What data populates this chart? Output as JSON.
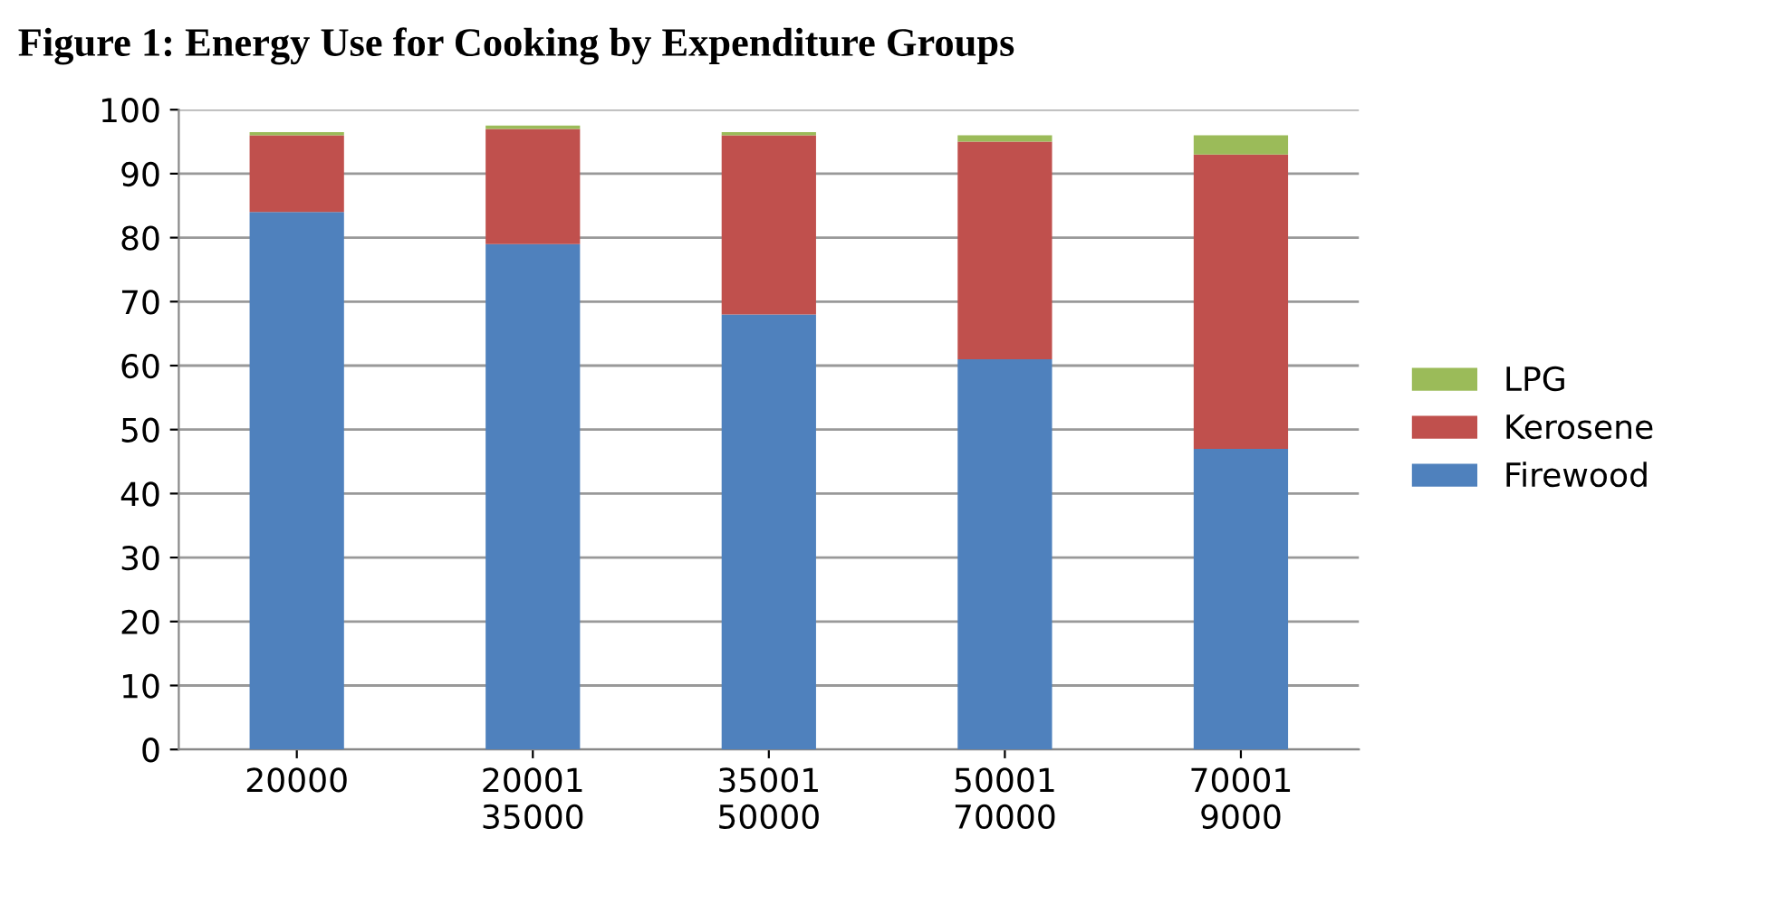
{
  "chart_data": {
    "type": "bar",
    "stacked": true,
    "title": "Figure 1: Energy Use for Cooking by Expenditure Groups",
    "categories": [
      "20000",
      "20001\n35000",
      "35001\n50000",
      "50001\n70000",
      "70001\n9000"
    ],
    "series": [
      {
        "name": "Firewood",
        "color": "#4f81bd",
        "values": [
          84,
          79,
          68,
          61,
          47
        ]
      },
      {
        "name": "Kerosene",
        "color": "#c0504d",
        "values": [
          12,
          18,
          28,
          34,
          46
        ]
      },
      {
        "name": "LPG",
        "color": "#9bbb59",
        "values": [
          0.5,
          0.5,
          0.5,
          1,
          3
        ]
      }
    ],
    "ylim": [
      0,
      100
    ],
    "yticks": [
      0,
      10,
      20,
      30,
      40,
      50,
      60,
      70,
      80,
      90,
      100
    ],
    "grid": "y",
    "legend": "right"
  }
}
